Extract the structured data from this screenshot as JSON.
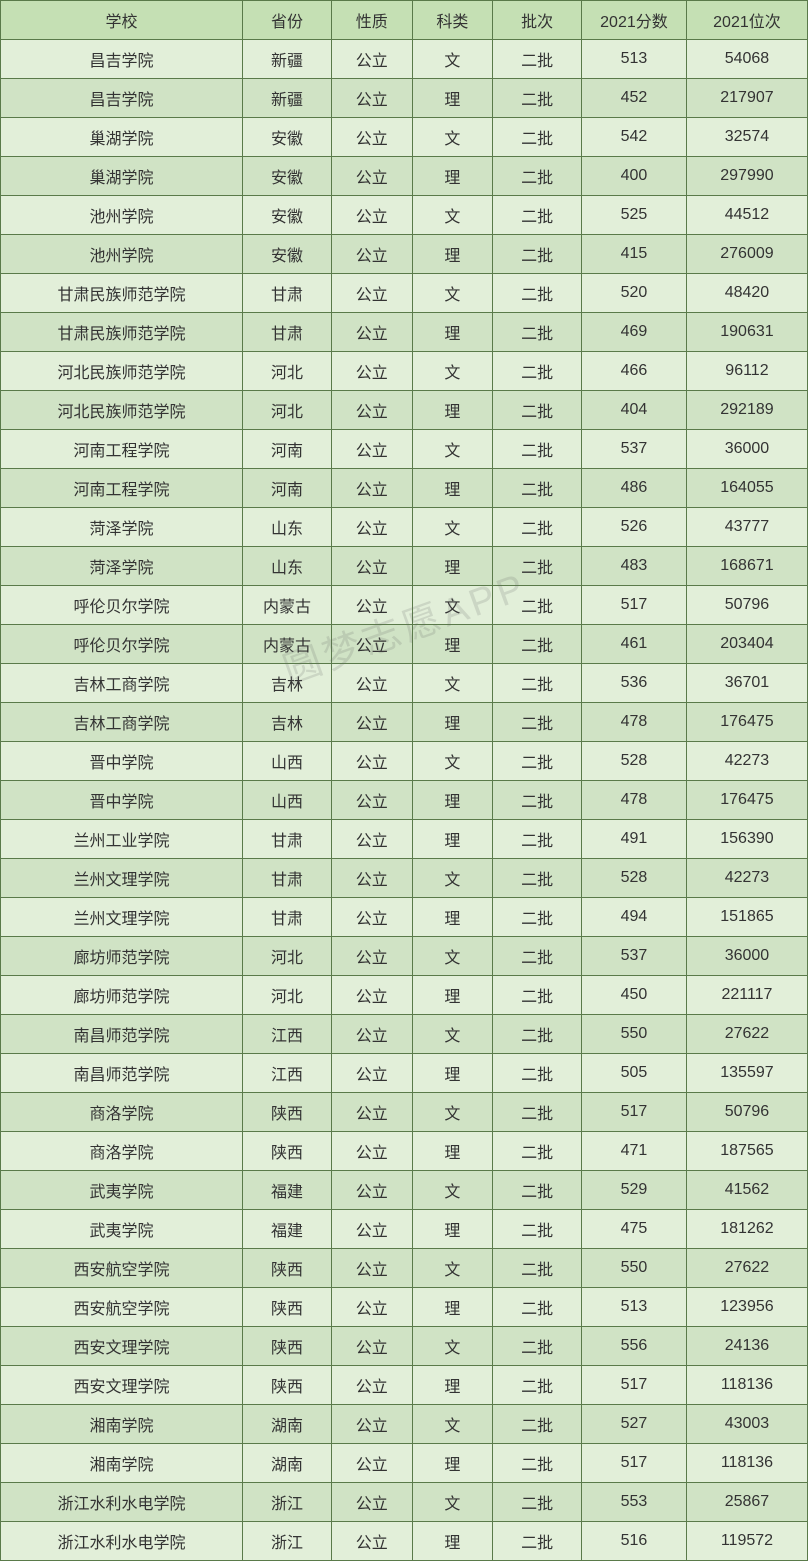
{
  "watermark": "圆梦志愿APP",
  "table": {
    "columns": [
      "学校",
      "省份",
      "性质",
      "科类",
      "批次",
      "2021分数",
      "2021位次"
    ],
    "header_bg": "#c5e0b4",
    "row_bg_odd": "#e2efd9",
    "row_bg_even": "#d0e3c5",
    "border_color": "#5a7a4a",
    "rows": [
      [
        "昌吉学院",
        "新疆",
        "公立",
        "文",
        "二批",
        "513",
        "54068"
      ],
      [
        "昌吉学院",
        "新疆",
        "公立",
        "理",
        "二批",
        "452",
        "217907"
      ],
      [
        "巢湖学院",
        "安徽",
        "公立",
        "文",
        "二批",
        "542",
        "32574"
      ],
      [
        "巢湖学院",
        "安徽",
        "公立",
        "理",
        "二批",
        "400",
        "297990"
      ],
      [
        "池州学院",
        "安徽",
        "公立",
        "文",
        "二批",
        "525",
        "44512"
      ],
      [
        "池州学院",
        "安徽",
        "公立",
        "理",
        "二批",
        "415",
        "276009"
      ],
      [
        "甘肃民族师范学院",
        "甘肃",
        "公立",
        "文",
        "二批",
        "520",
        "48420"
      ],
      [
        "甘肃民族师范学院",
        "甘肃",
        "公立",
        "理",
        "二批",
        "469",
        "190631"
      ],
      [
        "河北民族师范学院",
        "河北",
        "公立",
        "文",
        "二批",
        "466",
        "96112"
      ],
      [
        "河北民族师范学院",
        "河北",
        "公立",
        "理",
        "二批",
        "404",
        "292189"
      ],
      [
        "河南工程学院",
        "河南",
        "公立",
        "文",
        "二批",
        "537",
        "36000"
      ],
      [
        "河南工程学院",
        "河南",
        "公立",
        "理",
        "二批",
        "486",
        "164055"
      ],
      [
        "菏泽学院",
        "山东",
        "公立",
        "文",
        "二批",
        "526",
        "43777"
      ],
      [
        "菏泽学院",
        "山东",
        "公立",
        "理",
        "二批",
        "483",
        "168671"
      ],
      [
        "呼伦贝尔学院",
        "内蒙古",
        "公立",
        "文",
        "二批",
        "517",
        "50796"
      ],
      [
        "呼伦贝尔学院",
        "内蒙古",
        "公立",
        "理",
        "二批",
        "461",
        "203404"
      ],
      [
        "吉林工商学院",
        "吉林",
        "公立",
        "文",
        "二批",
        "536",
        "36701"
      ],
      [
        "吉林工商学院",
        "吉林",
        "公立",
        "理",
        "二批",
        "478",
        "176475"
      ],
      [
        "晋中学院",
        "山西",
        "公立",
        "文",
        "二批",
        "528",
        "42273"
      ],
      [
        "晋中学院",
        "山西",
        "公立",
        "理",
        "二批",
        "478",
        "176475"
      ],
      [
        "兰州工业学院",
        "甘肃",
        "公立",
        "理",
        "二批",
        "491",
        "156390"
      ],
      [
        "兰州文理学院",
        "甘肃",
        "公立",
        "文",
        "二批",
        "528",
        "42273"
      ],
      [
        "兰州文理学院",
        "甘肃",
        "公立",
        "理",
        "二批",
        "494",
        "151865"
      ],
      [
        "廊坊师范学院",
        "河北",
        "公立",
        "文",
        "二批",
        "537",
        "36000"
      ],
      [
        "廊坊师范学院",
        "河北",
        "公立",
        "理",
        "二批",
        "450",
        "221117"
      ],
      [
        "南昌师范学院",
        "江西",
        "公立",
        "文",
        "二批",
        "550",
        "27622"
      ],
      [
        "南昌师范学院",
        "江西",
        "公立",
        "理",
        "二批",
        "505",
        "135597"
      ],
      [
        "商洛学院",
        "陕西",
        "公立",
        "文",
        "二批",
        "517",
        "50796"
      ],
      [
        "商洛学院",
        "陕西",
        "公立",
        "理",
        "二批",
        "471",
        "187565"
      ],
      [
        "武夷学院",
        "福建",
        "公立",
        "文",
        "二批",
        "529",
        "41562"
      ],
      [
        "武夷学院",
        "福建",
        "公立",
        "理",
        "二批",
        "475",
        "181262"
      ],
      [
        "西安航空学院",
        "陕西",
        "公立",
        "文",
        "二批",
        "550",
        "27622"
      ],
      [
        "西安航空学院",
        "陕西",
        "公立",
        "理",
        "二批",
        "513",
        "123956"
      ],
      [
        "西安文理学院",
        "陕西",
        "公立",
        "文",
        "二批",
        "556",
        "24136"
      ],
      [
        "西安文理学院",
        "陕西",
        "公立",
        "理",
        "二批",
        "517",
        "118136"
      ],
      [
        "湘南学院",
        "湖南",
        "公立",
        "文",
        "二批",
        "527",
        "43003"
      ],
      [
        "湘南学院",
        "湖南",
        "公立",
        "理",
        "二批",
        "517",
        "118136"
      ],
      [
        "浙江水利水电学院",
        "浙江",
        "公立",
        "文",
        "二批",
        "553",
        "25867"
      ],
      [
        "浙江水利水电学院",
        "浙江",
        "公立",
        "理",
        "二批",
        "516",
        "119572"
      ]
    ]
  }
}
